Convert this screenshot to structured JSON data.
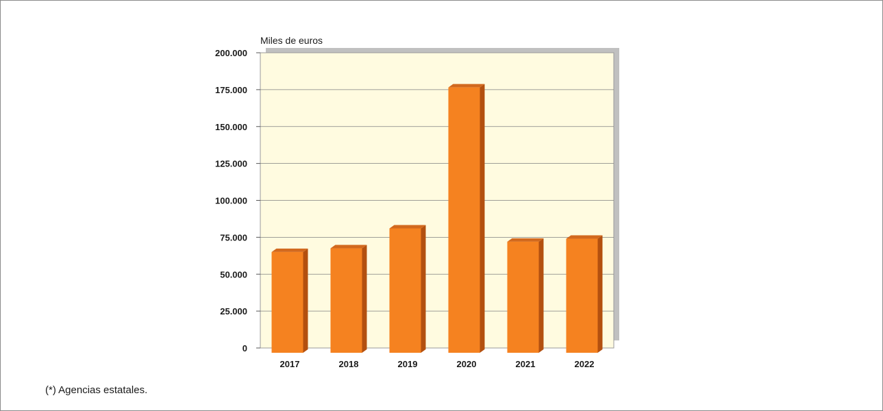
{
  "chart_data": {
    "type": "bar",
    "unit_label": "Miles de euros",
    "categories": [
      "2017",
      "2018",
      "2019",
      "2020",
      "2021",
      "2022"
    ],
    "values": [
      65000,
      67500,
      81000,
      176500,
      72000,
      74000
    ],
    "ylim": [
      0,
      200000
    ],
    "yticks": [
      0,
      25000,
      50000,
      75000,
      100000,
      125000,
      150000,
      175000,
      200000
    ],
    "ytick_labels": [
      "0",
      "25.000",
      "50.000",
      "75.000",
      "100.000",
      "125.000",
      "150.000",
      "175.000",
      "200.000"
    ],
    "grid": true,
    "colors": {
      "bar": "#F58220",
      "bar_side": "#B3500F",
      "bar_top": "#D2691E",
      "plot_bg": "#FFFBE0",
      "shadow": "#C0C0C0",
      "grid": "#7F7F7F"
    }
  },
  "footnote": "(*) Agencias estatales."
}
